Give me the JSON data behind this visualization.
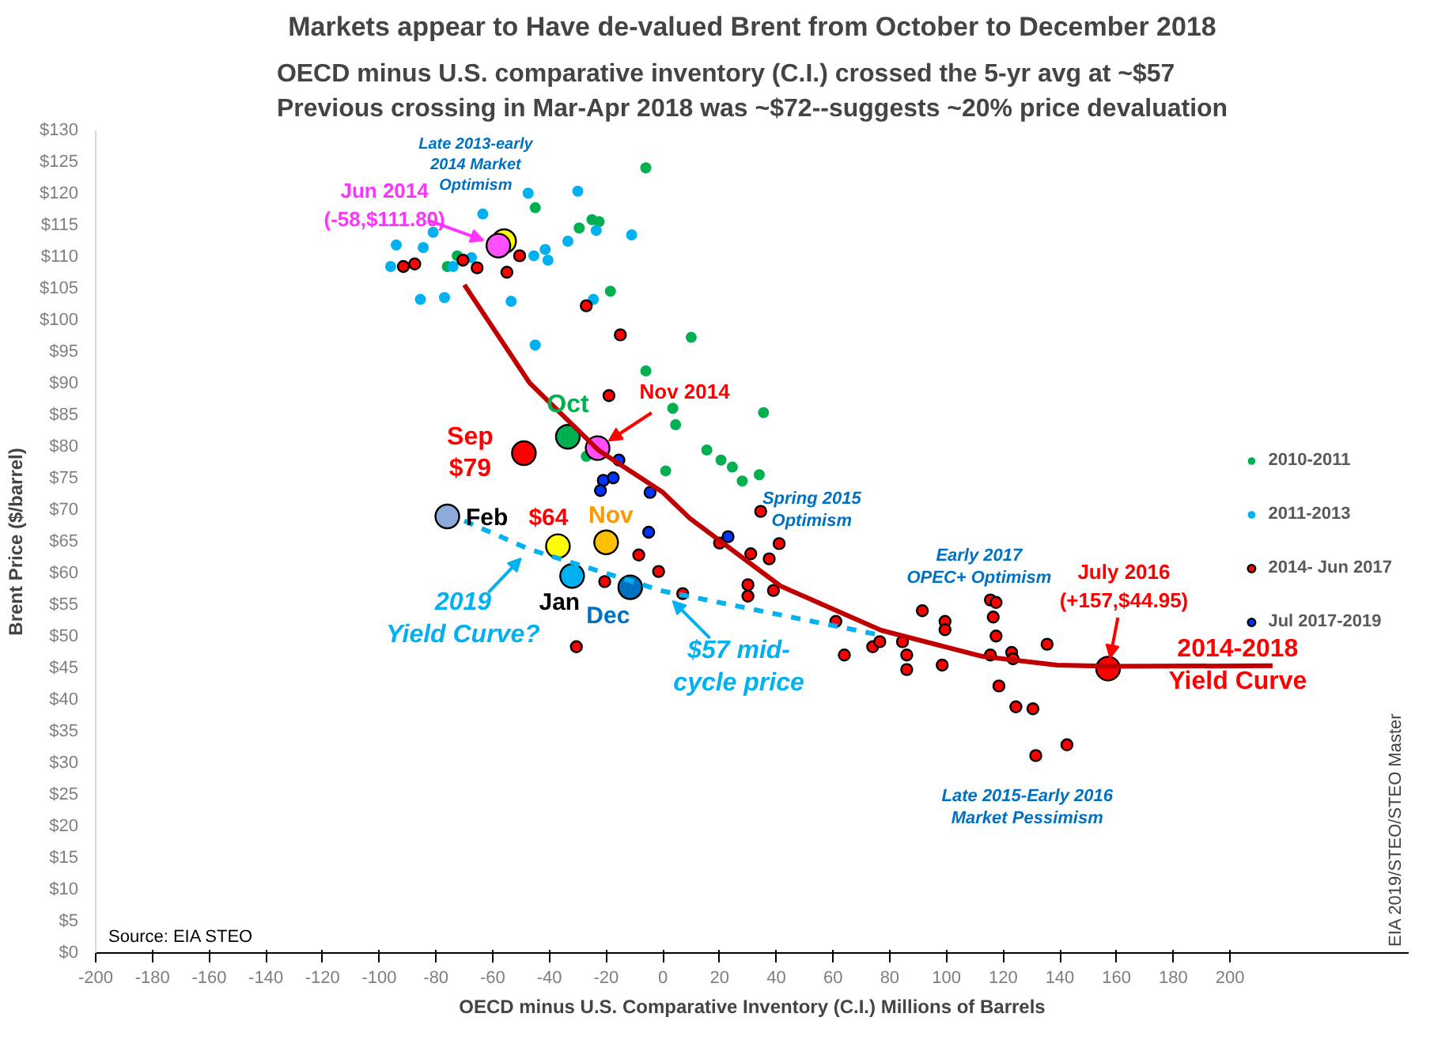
{
  "chart_data": {
    "type": "scatter",
    "title": "Markets appear to Have de-valued Brent from October to December 2018",
    "subtitle": "OECD minus U.S. comparative inventory (C.I.) crossed the 5-yr avg at ~$57\nPrevious crossing in Mar-Apr 2018 was ~$72--suggests ~20% price devaluation",
    "xlabel": "OECD minus U.S. Comparative Inventory (C.I.) Millions of Barrels",
    "ylabel": "Brent Price ($/barrel)",
    "xlim": [
      -200,
      263
    ],
    "xticks": [
      -200,
      -180,
      -160,
      -140,
      -120,
      -100,
      -80,
      -60,
      -40,
      -20,
      0,
      20,
      40,
      60,
      80,
      100,
      120,
      140,
      160,
      180,
      200
    ],
    "ylim": [
      0,
      130
    ],
    "yticks": [
      {
        "value": 0,
        "label": "$0"
      },
      {
        "value": 5,
        "label": "$5"
      },
      {
        "value": 10,
        "label": "$10"
      },
      {
        "value": 15,
        "label": "$15"
      },
      {
        "value": 20,
        "label": "$20"
      },
      {
        "value": 25,
        "label": "$25"
      },
      {
        "value": 30,
        "label": "$30"
      },
      {
        "value": 35,
        "label": "$35"
      },
      {
        "value": 40,
        "label": "$40"
      },
      {
        "value": 45,
        "label": "$45"
      },
      {
        "value": 50,
        "label": "$50"
      },
      {
        "value": 55,
        "label": "$55"
      },
      {
        "value": 60,
        "label": "$60"
      },
      {
        "value": 65,
        "label": "$65"
      },
      {
        "value": 70,
        "label": "$70"
      },
      {
        "value": 75,
        "label": "$75"
      },
      {
        "value": 80,
        "label": "$80"
      },
      {
        "value": 85,
        "label": "$85"
      },
      {
        "value": 90,
        "label": "$90"
      },
      {
        "value": 95,
        "label": "$95"
      },
      {
        "value": 100,
        "label": "$100"
      },
      {
        "value": 105,
        "label": "$105"
      },
      {
        "value": 110,
        "label": "$110"
      },
      {
        "value": 115,
        "label": "$115"
      },
      {
        "value": 120,
        "label": "$120"
      },
      {
        "value": 125,
        "label": "$125"
      },
      {
        "value": 130,
        "label": "$130"
      }
    ],
    "legend": "right",
    "marker": "circle",
    "series": [
      {
        "name": "2010-2011",
        "color": "#00b050",
        "x": [
          -76,
          -72.5,
          -45,
          -29.5,
          -25,
          -22.5,
          -27,
          -18.5,
          -6,
          -6,
          1,
          3.5,
          4.5,
          10,
          15.5,
          20.5,
          24.5,
          28,
          34,
          35.5
        ],
        "values": [
          108.5,
          110.2,
          117.8,
          114.6,
          115.9,
          115.6,
          78.5,
          104.6,
          124.1,
          92,
          76.2,
          86.1,
          83.5,
          97.3,
          79.5,
          77.9,
          76.8,
          74.6,
          75.6,
          85.4
        ]
      },
      {
        "name": "2011-2013",
        "color": "#00b0f0",
        "x": [
          -94,
          -96,
          -84.5,
          -81,
          -85.5,
          -77,
          -74,
          -67.5,
          -63.5,
          -53.5,
          -47.5,
          -45.5,
          -41.5,
          -40.5,
          -33.5,
          -30,
          -23.5,
          -24.5,
          -45,
          -11
        ],
        "values": [
          111.9,
          108.5,
          111.5,
          113.9,
          103.3,
          103.6,
          108.5,
          109.9,
          116.8,
          103,
          120.1,
          110.2,
          111.2,
          109.5,
          112.5,
          120.4,
          114.2,
          103.3,
          96.1,
          113.5
        ]
      },
      {
        "name": "2014- Jun 2017",
        "color": "#ff0000",
        "x": [
          -91.5,
          -87.5,
          -70.5,
          -65.5,
          -55,
          -50.5,
          -27,
          -15,
          -19,
          -8.5,
          -1.5,
          -20.5,
          -30.5,
          7,
          20,
          31,
          37.5,
          41,
          30,
          30,
          39,
          34.5,
          61,
          64,
          74,
          76.5,
          84.5,
          86,
          86,
          91.5,
          99.5,
          99.5,
          98.5,
          115.5,
          117.5,
          116.5,
          117.5,
          115.5,
          123,
          123.5,
          118.5,
          124.5,
          130.5,
          131.5,
          142.5,
          135.5
        ],
        "values": [
          108.5,
          108.9,
          109.5,
          108.3,
          107.6,
          110.2,
          102.3,
          97.7,
          88.1,
          62.9,
          60.3,
          58.7,
          48.4,
          56.8,
          64.8,
          63.1,
          62.3,
          64.7,
          58.2,
          56.4,
          57.3,
          69.8,
          52.4,
          47.1,
          48.4,
          49.2,
          49.2,
          47.1,
          44.8,
          54.1,
          52.4,
          51.1,
          45.5,
          55.8,
          55.4,
          53.1,
          50.1,
          47.1,
          47.5,
          46.5,
          42.2,
          38.9,
          38.6,
          31.2,
          32.9,
          48.8
        ]
      },
      {
        "name": "Jul 2017-2019",
        "color": "#0033ff",
        "x": [
          -15.5,
          -21,
          -17.5,
          -22,
          -4.5,
          -5,
          23
        ],
        "values": [
          77.9,
          74.7,
          75.1,
          73.1,
          72.8,
          66.5,
          65.8
        ]
      },
      {
        "color": "#ffff00",
        "x": [
          -56,
          -37
        ],
        "values": [
          112.5,
          64.3
        ]
      },
      {
        "color": "#ff4fff",
        "x": [
          -58,
          -23
        ],
        "values": [
          111.8,
          79.8
        ]
      },
      {
        "color": "#ff0000",
        "x": [
          -49,
          157
        ],
        "values": [
          79,
          44.95
        ]
      },
      {
        "color": "#00b050",
        "x": [
          -33.5
        ],
        "values": [
          81.6
        ]
      },
      {
        "color": "#ffc000",
        "x": [
          -20
        ],
        "values": [
          64.9
        ]
      },
      {
        "color": "#00b0f0",
        "x": [
          -32
        ],
        "values": [
          59.6
        ]
      },
      {
        "color": "#0070c0",
        "x": [
          -11.5
        ],
        "values": [
          57.8
        ]
      },
      {
        "color": "#8eaadb",
        "x": [
          -76
        ],
        "values": [
          69
        ]
      },
      {
        "type": "line",
        "marker": "none",
        "color": "#c00000",
        "x": [
          -70,
          -47,
          -22.5,
          0,
          9.5,
          41.5,
          77,
          112.5,
          139,
          158,
          215
        ],
        "values": [
          105.6,
          90.1,
          79.4,
          72.8,
          68.7,
          58,
          51,
          46.9,
          45.5,
          45.3,
          45.4
        ]
      },
      {
        "type": "line",
        "marker": "none",
        "color": "#00b0f0",
        "line_style": "dashed",
        "x": [
          -70,
          -47,
          0,
          75
        ],
        "values": [
          68.3,
          63.8,
          57.2,
          50.4
        ]
      }
    ],
    "annotations": [
      {
        "text": "Jun 2014\n(-58,$111.80)",
        "x": -58,
        "y": 111.8
      },
      {
        "text": "Nov 2014",
        "x": -23,
        "y": 79.8
      },
      {
        "text": "Oct",
        "x": -33.5,
        "y": 81.6
      },
      {
        "text": "Sep\n$79",
        "x": -49,
        "y": 79
      },
      {
        "text": "Feb",
        "x": -76,
        "y": 69
      },
      {
        "text": "$64",
        "x": -37,
        "y": 64.3
      },
      {
        "text": "Nov",
        "x": -20,
        "y": 64.9
      },
      {
        "text": "Jan",
        "x": -32,
        "y": 59.6
      },
      {
        "text": "Dec",
        "x": -11.5,
        "y": 57.8
      },
      {
        "text": "2019\nYield Curve?",
        "x": -47,
        "y": 63.8
      },
      {
        "text": "$57 mid-\ncycle price",
        "x": 0,
        "y": 57.2
      },
      {
        "text": "July 2016\n(+157,$44.95)",
        "x": 157,
        "y": 44.95
      },
      {
        "text": "2014-2018\nYield Curve",
        "x": 215,
        "y": 45.4
      },
      "Late 2013-early\n2014 Market\nOptimism",
      "Spring 2015\nOptimism",
      "Early 2017\nOPEC+ Optimism",
      "Late 2015-Early 2016\nMarket Pessimism",
      "Source: EIA STEO",
      "EIA 2019/STEO/STEO Master"
    ]
  }
}
